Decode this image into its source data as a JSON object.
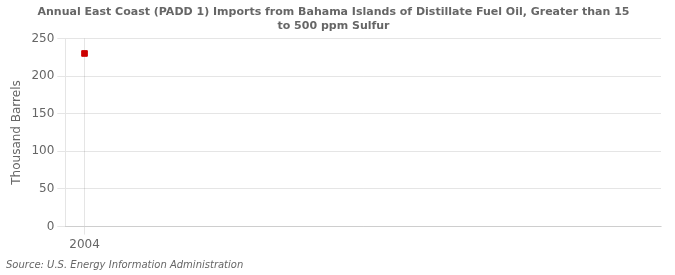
{
  "chart_data": {
    "type": "scatter",
    "title": "Annual East Coast (PADD 1) Imports from Bahama Islands of Distillate Fuel Oil, Greater than 15\nto 500 ppm Sulfur",
    "ylabel": "Thousand Barrels",
    "source": "Source: U.S. Energy Information Administration",
    "x": [
      2004
    ],
    "values": [
      230
    ],
    "color": "#cc0000",
    "marker": "square",
    "xlim": [
      2003.3,
      2025
    ],
    "xticks": [
      2004
    ],
    "ylim": [
      0,
      250
    ],
    "yticks": [
      0,
      50,
      100,
      150,
      200,
      250
    ],
    "grid": true
  }
}
